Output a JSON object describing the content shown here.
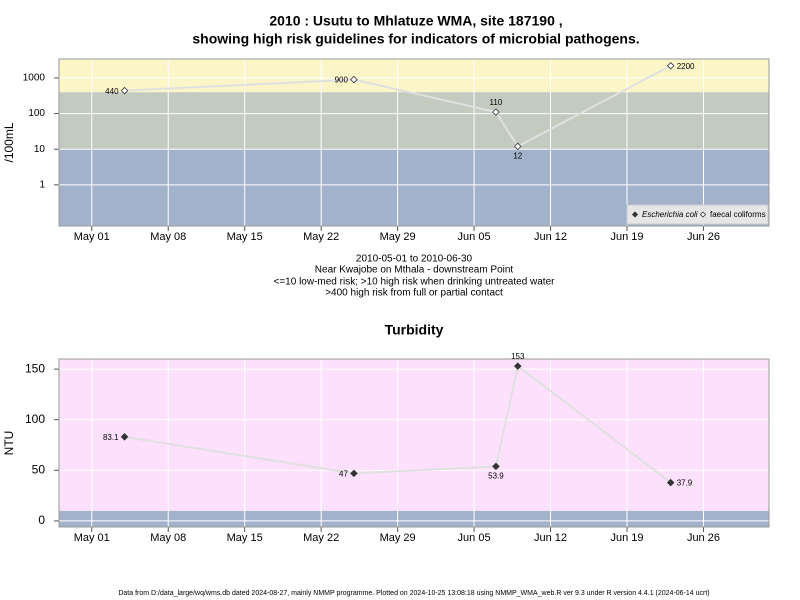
{
  "chart_data": [
    {
      "type": "line",
      "title": [
        "2010 : Usutu to Mhlatuze WMA, site 187190 ,",
        "showing high risk guidelines for indicators of microbial pathogens."
      ],
      "ylabel": "/100mL",
      "notes": [
        "2010-05-01 to 2010-06-30",
        "Near Kwajobe on Mthala - downstream Point",
        "<=10 low-med risk; >10 high risk when drinking untreated water",
        ">400 high risk from full or partial contact"
      ],
      "x": [
        "2010-05-04",
        "2010-05-25",
        "2010-06-07",
        "2010-06-09",
        "2010-06-23"
      ],
      "series": [
        {
          "name": "Escherichia coli",
          "color": "#333333",
          "marker": "filled",
          "values": [
            null,
            null,
            null,
            null,
            null
          ]
        },
        {
          "name": "faecal coliforms",
          "color": "#333333",
          "marker": "open",
          "values": [
            440,
            900,
            110,
            12,
            2200
          ]
        }
      ],
      "line_color": "#e0e0e0",
      "ylog": true,
      "ylim": [
        0.07,
        3400
      ],
      "yticks": [
        1,
        10,
        100,
        1000
      ],
      "xlim": [
        "2010-04-28",
        "2010-07-02"
      ],
      "xticks": [
        {
          "value": "2010-05-01",
          "label": "May 01"
        },
        {
          "value": "2010-05-08",
          "label": "May 08"
        },
        {
          "value": "2010-05-15",
          "label": "May 15"
        },
        {
          "value": "2010-05-22",
          "label": "May 22"
        },
        {
          "value": "2010-05-29",
          "label": "May 29"
        },
        {
          "value": "2010-06-05",
          "label": "Jun 05"
        },
        {
          "value": "2010-06-12",
          "label": "Jun 12"
        },
        {
          "value": "2010-06-19",
          "label": "Jun 19"
        },
        {
          "value": "2010-06-26",
          "label": "Jun 26"
        }
      ],
      "band_breaks": [
        10,
        400
      ],
      "band_colors": [
        "#a3b2cb",
        "#c3cbc1",
        "#fbf5c8"
      ],
      "grid": true,
      "legend": "bottom-right"
    },
    {
      "type": "line",
      "title": "Turbidity",
      "ylabel": "NTU",
      "x": [
        "2010-05-04",
        "2010-05-25",
        "2010-06-07",
        "2010-06-09",
        "2010-06-23"
      ],
      "series": [
        {
          "color": "#333333",
          "marker": "filled",
          "values": [
            83.1,
            47,
            53.9,
            153,
            37.9
          ]
        }
      ],
      "line_color": "#e0e0e0",
      "ylog": false,
      "ylim": [
        -6,
        160
      ],
      "yticks": [
        0,
        50,
        100,
        150
      ],
      "xlim": [
        "2010-04-28",
        "2010-07-02"
      ],
      "xticks": [
        {
          "value": "2010-05-01",
          "label": "May 01"
        },
        {
          "value": "2010-05-08",
          "label": "May 08"
        },
        {
          "value": "2010-05-15",
          "label": "May 15"
        },
        {
          "value": "2010-05-22",
          "label": "May 22"
        },
        {
          "value": "2010-05-29",
          "label": "May 29"
        },
        {
          "value": "2010-06-05",
          "label": "Jun 05"
        },
        {
          "value": "2010-06-12",
          "label": "Jun 12"
        },
        {
          "value": "2010-06-19",
          "label": "Jun 19"
        },
        {
          "value": "2010-06-26",
          "label": "Jun 26"
        }
      ],
      "band_breaks": [
        10
      ],
      "band_colors": [
        "#a3b2cb",
        "#fde0fc"
      ],
      "grid": true
    }
  ],
  "footer": "Data from D:/data_large/wq/wms.db dated 2024-08-27, mainly NMMP programme. Plotted on 2024-10-25 13:08:18 using NMMP_WMA_web.R ver 9.3 under R version 4.4.1 (2024-06-14 ucrt)"
}
